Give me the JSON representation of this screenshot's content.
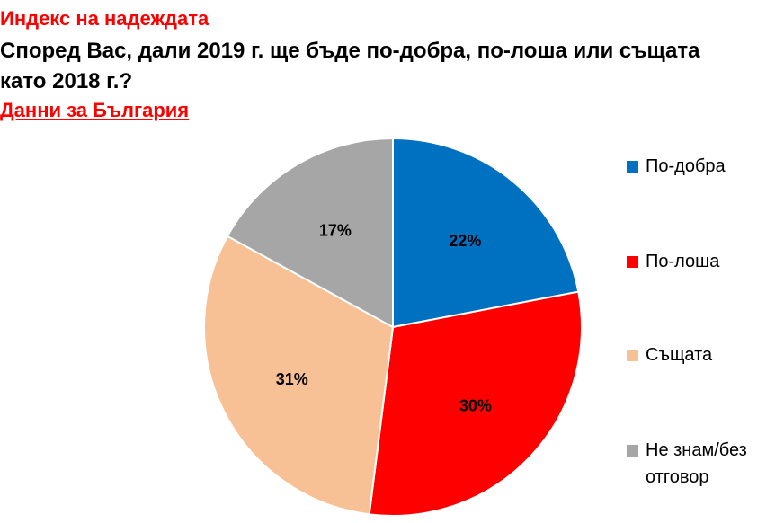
{
  "title": "Индекс на надеждата",
  "question_line1": "Според Вас, дали 2019 г. ще бъде по-добра, по-лоша или същата",
  "question_line2": "като 2018 г.?",
  "subtitle": "Данни за България",
  "chart_data": {
    "type": "pie",
    "categories": [
      "По-добра",
      "По-лоша",
      "Същата",
      "Не знам/без отговор"
    ],
    "values": [
      22,
      30,
      31,
      17
    ],
    "labels": [
      "22%",
      "30%",
      "31%",
      "17%"
    ],
    "colors": [
      "#0070c0",
      "#ff0000",
      "#f8c195",
      "#a6a6a6"
    ],
    "start": "12 o'clock",
    "direction": "clockwise",
    "legend_position": "right"
  }
}
